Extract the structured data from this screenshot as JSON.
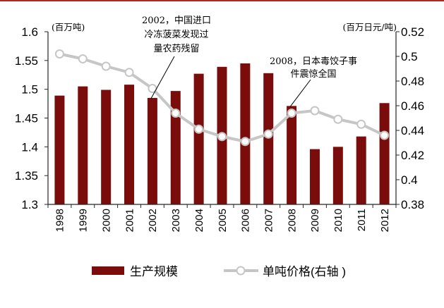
{
  "chart_data": {
    "type": "bar",
    "categories": [
      "1998",
      "1999",
      "2000",
      "2001",
      "2002",
      "2003",
      "2004",
      "2005",
      "2006",
      "2007",
      "2008",
      "2009",
      "2010",
      "2011",
      "2012"
    ],
    "series": [
      {
        "name": "生产规模",
        "type": "bar",
        "axis": "left",
        "color": "#7a0c0c",
        "values": [
          1.489,
          1.505,
          1.499,
          1.508,
          1.485,
          1.497,
          1.527,
          1.539,
          1.545,
          1.528,
          1.471,
          1.396,
          1.4,
          1.418,
          1.476
        ]
      },
      {
        "name": "单吨价格(右轴 )",
        "type": "line",
        "axis": "right",
        "color": "#c6c6c6",
        "marker": "circle",
        "values": [
          0.502,
          0.498,
          0.492,
          0.487,
          0.474,
          0.454,
          0.441,
          0.435,
          0.431,
          0.437,
          0.454,
          0.456,
          0.449,
          0.445,
          0.436
        ]
      }
    ],
    "ylabel": "(百万吨)",
    "y2label": "(百万日元/吨)",
    "ylim": [
      1.3,
      1.6
    ],
    "y2lim": [
      0.38,
      0.52
    ],
    "yticks": [
      "1.3",
      "1.35",
      "1.4",
      "1.45",
      "1.5",
      "1.55",
      "1.6"
    ],
    "y2ticks": [
      "0.38",
      "0.4",
      "0.42",
      "0.44",
      "0.46",
      "0.48",
      "0.5",
      "0.52"
    ],
    "grid": false,
    "legend": "bottom",
    "annotations": [
      {
        "category": "2002",
        "lines": [
          "2002，中国进口",
          "冷冻菠菜发现过",
          "量农药残留"
        ]
      },
      {
        "category": "2008",
        "lines": [
          "2008，日本毒饺子事",
          "件震惊全国"
        ]
      }
    ]
  },
  "frame": {
    "border_color": "#a8282c"
  }
}
